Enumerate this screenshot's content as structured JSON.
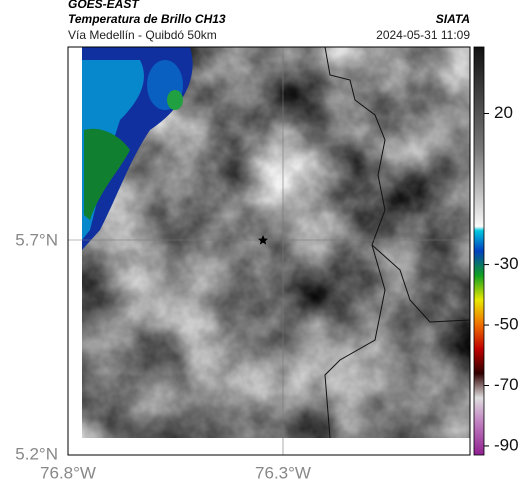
{
  "header": {
    "source": "GOES-EAST",
    "title": "Temperatura de Brillo CH13",
    "brand": "SIATA",
    "subtitle": "Vía Medellín - Quibdó 50km",
    "datetime": "2024-05-31 11:09"
  },
  "map": {
    "lat_labels": [
      "5.7°N",
      "5.2°N"
    ],
    "lon_labels": [
      "76.8°W",
      "76.3°W"
    ]
  },
  "colorbar": {
    "range": [
      42,
      -93
    ],
    "ticks": [
      20,
      -30,
      -50,
      -70,
      -90
    ]
  }
}
